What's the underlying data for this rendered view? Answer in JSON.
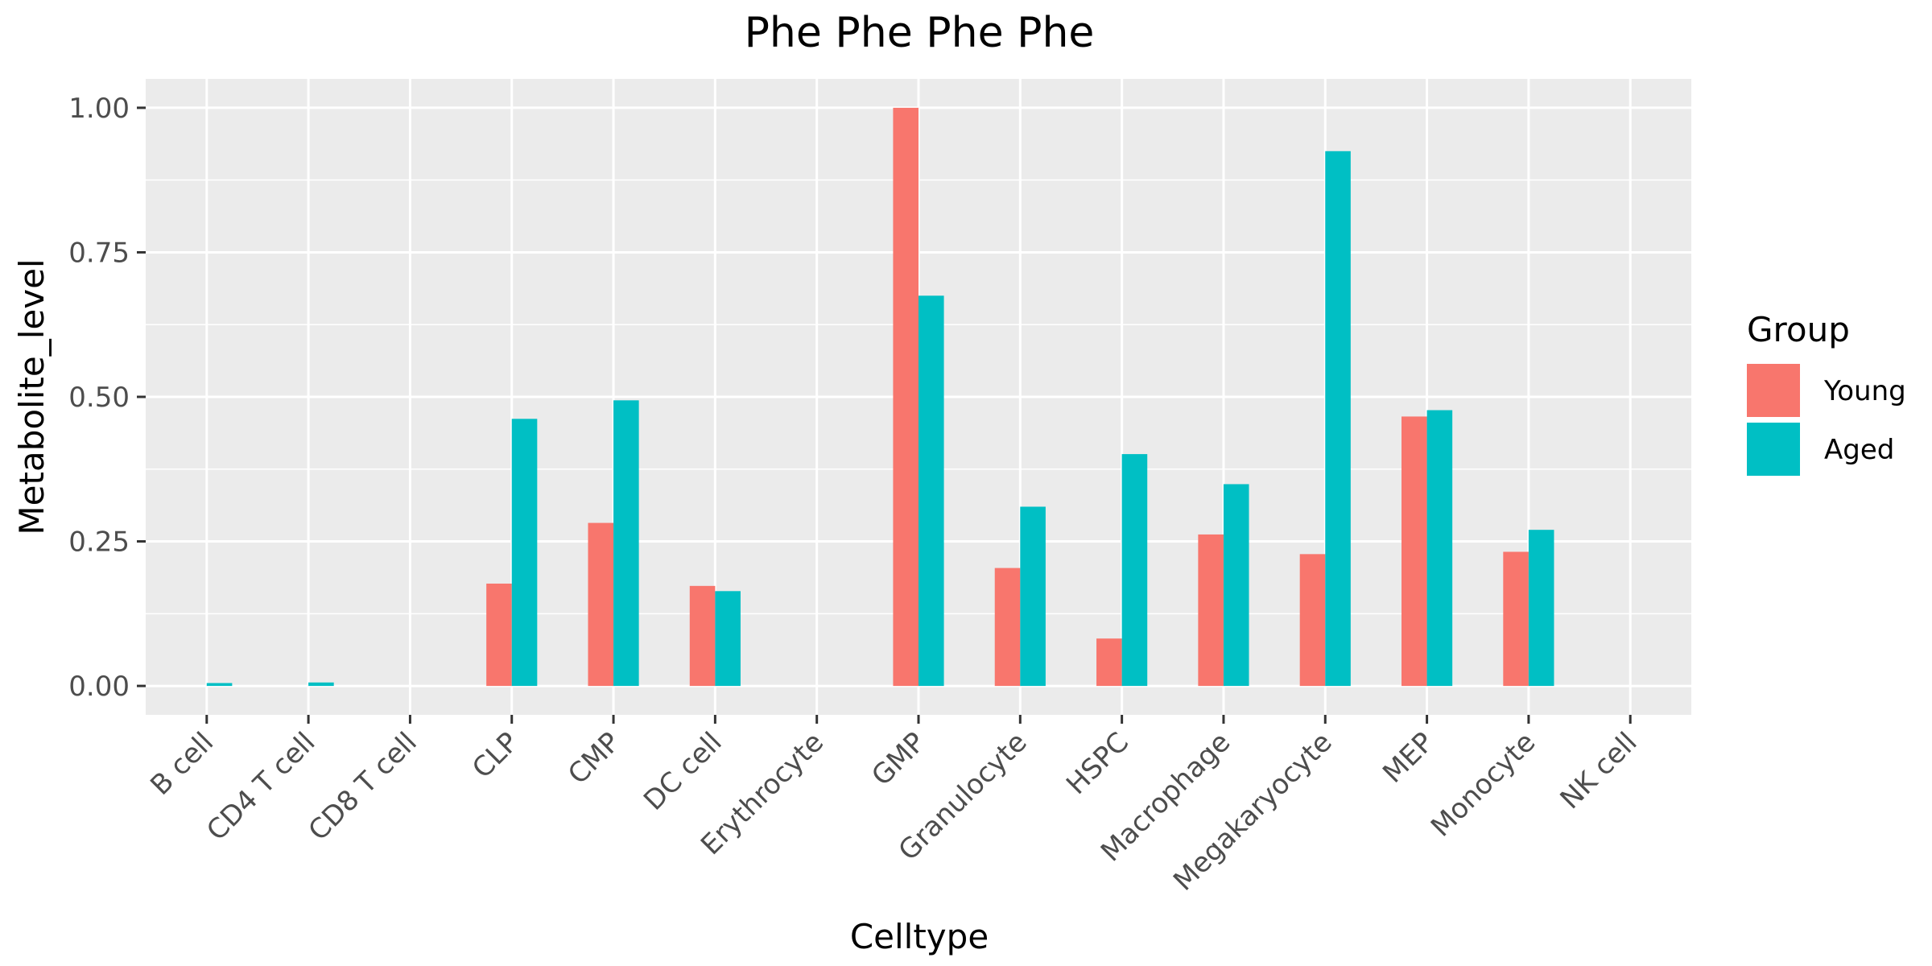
{
  "chart_data": {
    "type": "bar",
    "title": "Phe Phe Phe Phe",
    "xlabel": "Celltype",
    "ylabel": "Metabolite_level",
    "ylim": [
      -0.05,
      1.05
    ],
    "yticks": [
      0,
      0.25,
      0.5,
      0.75,
      1
    ],
    "ytick_labels": [
      "0.00",
      "0.25",
      "0.50",
      "0.75",
      "1.00"
    ],
    "categories": [
      "B cell",
      "CD4 T cell",
      "CD8 T cell",
      "CLP",
      "CMP",
      "DC cell",
      "Erythrocyte",
      "GMP",
      "Granulocyte",
      "HSPC",
      "Macrophage",
      "Megakaryocyte",
      "MEP",
      "Monocyte",
      "NK cell"
    ],
    "series": [
      {
        "name": "Young",
        "color": "#F8766D",
        "values": [
          0,
          0,
          0,
          0.177,
          0.282,
          0.173,
          0,
          1.0,
          0.204,
          0.082,
          0.262,
          0.228,
          0.466,
          0.232,
          0
        ]
      },
      {
        "name": "Aged",
        "color": "#00BFC4",
        "values": [
          0.005,
          0.006,
          0,
          0.462,
          0.494,
          0.164,
          0,
          0.675,
          0.31,
          0.401,
          0.349,
          0.925,
          0.477,
          0.27,
          0
        ]
      }
    ],
    "legend": {
      "title": "Group",
      "position": "right"
    },
    "grid": true,
    "panel_background": "#EBEBEB"
  }
}
